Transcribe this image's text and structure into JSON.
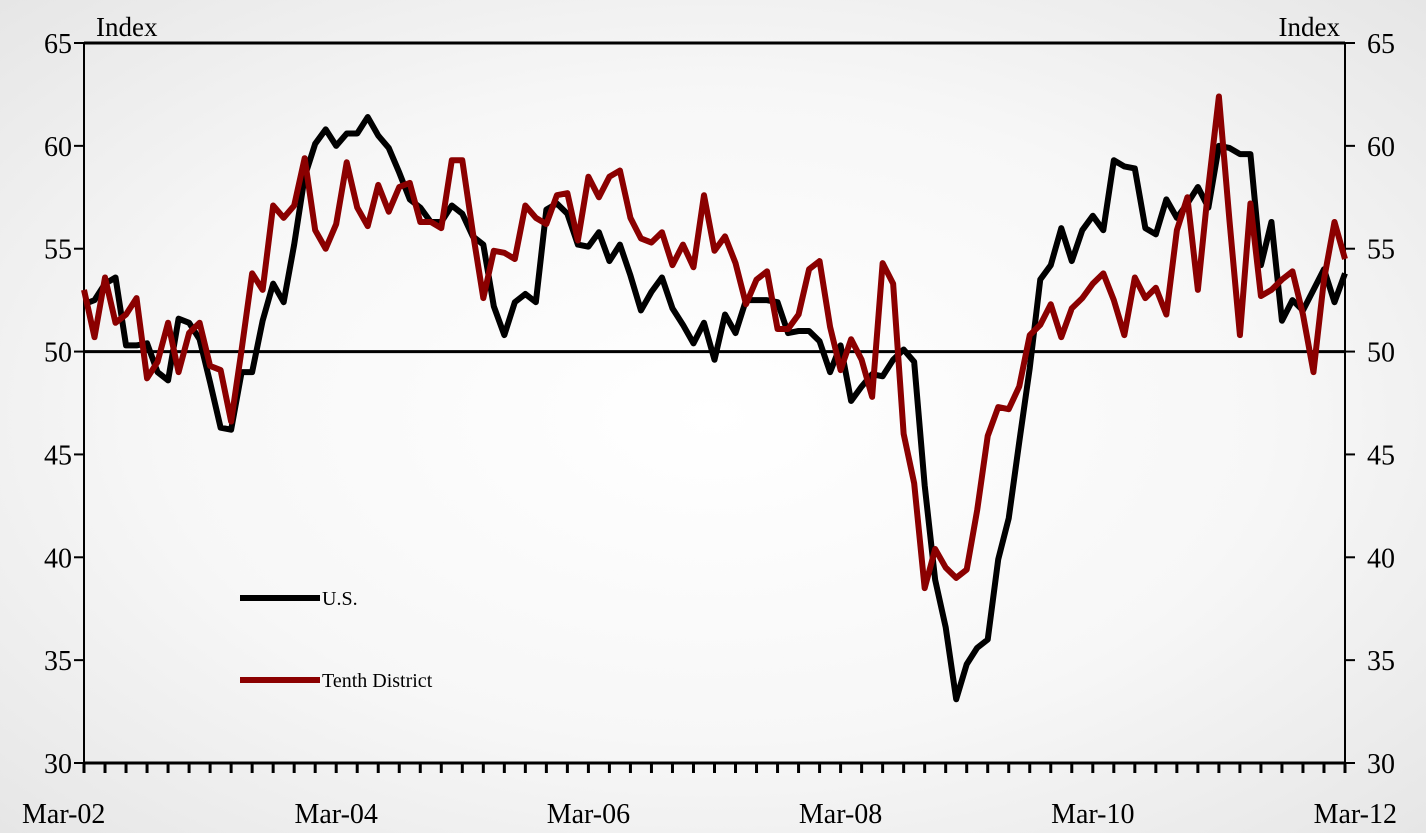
{
  "chart_data": {
    "type": "line",
    "y_label": "Index",
    "y2_label": "Index",
    "categories": [
      "Mar-02",
      null,
      null,
      null,
      null,
      null,
      null,
      null,
      null,
      null,
      null,
      null,
      null,
      null,
      null,
      null,
      null,
      null,
      null,
      null,
      null,
      null,
      null,
      null,
      "Mar-04",
      null,
      null,
      null,
      null,
      null,
      null,
      null,
      null,
      null,
      null,
      null,
      null,
      null,
      null,
      null,
      null,
      null,
      null,
      null,
      null,
      null,
      null,
      null,
      "Mar-06",
      null,
      null,
      null,
      null,
      null,
      null,
      null,
      null,
      null,
      null,
      null,
      null,
      null,
      null,
      null,
      null,
      null,
      null,
      null,
      null,
      null,
      null,
      null,
      "Mar-08",
      null,
      null,
      null,
      null,
      null,
      null,
      null,
      null,
      null,
      null,
      null,
      null,
      null,
      null,
      null,
      null,
      null,
      null,
      null,
      null,
      null,
      null,
      null,
      "Mar-10",
      null,
      null,
      null,
      null,
      null,
      null,
      null,
      null,
      null,
      null,
      null,
      null,
      null,
      null,
      null,
      null,
      null,
      null,
      null,
      null,
      null,
      null,
      null,
      "Mar-12"
    ],
    "series": [
      {
        "name": "U.S.",
        "color": "#000000",
        "values": [
          52.3,
          52.5,
          53.3,
          53.6,
          50.3,
          50.3,
          50.4,
          49.0,
          48.6,
          51.6,
          51.4,
          50.6,
          48.5,
          46.3,
          46.2,
          49.0,
          49.0,
          51.5,
          53.3,
          52.4,
          55.2,
          58.5,
          60.1,
          60.8,
          60.0,
          60.6,
          60.6,
          61.4,
          60.5,
          59.9,
          58.7,
          57.4,
          57.0,
          56.3,
          56.3,
          57.1,
          56.7,
          55.6,
          55.2,
          52.2,
          50.8,
          52.4,
          52.8,
          52.4,
          56.9,
          57.2,
          56.7,
          55.2,
          55.1,
          55.8,
          54.4,
          55.2,
          53.7,
          52.0,
          52.9,
          53.6,
          52.1,
          51.3,
          50.4,
          51.4,
          49.6,
          51.8,
          50.9,
          52.5,
          52.5,
          52.5,
          52.4,
          50.9,
          51.0,
          51.0,
          50.5,
          49.0,
          50.3,
          47.6,
          48.3,
          48.9,
          48.8,
          49.6,
          50.1,
          49.5,
          43.5,
          38.9,
          36.6,
          33.1,
          34.8,
          35.6,
          36.0,
          39.9,
          41.9,
          45.6,
          49.2,
          53.5,
          54.2,
          56.0,
          54.4,
          55.9,
          56.6,
          55.9,
          59.3,
          59.0,
          58.9,
          56.0,
          55.7,
          57.4,
          56.5,
          57.2,
          58.0,
          57.0,
          60.0,
          59.9,
          59.6,
          59.6,
          54.2,
          56.3,
          51.5,
          52.5,
          52.0,
          53.0,
          54.0,
          52.4,
          53.8
        ]
      },
      {
        "name": "Tenth District",
        "color": "#8b0000",
        "values": [
          53.0,
          50.7,
          53.6,
          51.4,
          51.8,
          52.6,
          48.7,
          49.5,
          51.4,
          49.0,
          50.9,
          51.4,
          49.3,
          49.1,
          46.6,
          50.1,
          53.8,
          53.0,
          57.1,
          56.5,
          57.1,
          59.4,
          55.9,
          55.0,
          56.2,
          59.2,
          57.0,
          56.1,
          58.1,
          56.8,
          58.0,
          58.2,
          56.3,
          56.3,
          56.0,
          59.3,
          59.3,
          55.8,
          52.6,
          54.9,
          54.8,
          54.5,
          57.1,
          56.5,
          56.2,
          57.6,
          57.7,
          55.4,
          58.5,
          57.5,
          58.5,
          58.8,
          56.5,
          55.5,
          55.3,
          55.8,
          54.2,
          55.2,
          54.1,
          57.6,
          54.9,
          55.6,
          54.3,
          52.3,
          53.5,
          53.9,
          51.1,
          51.1,
          51.8,
          54.0,
          54.4,
          51.2,
          49.1,
          50.6,
          49.6,
          47.8,
          54.3,
          53.3,
          46.0,
          43.6,
          38.5,
          40.4,
          39.5,
          39.0,
          39.4,
          42.3,
          45.9,
          47.3,
          47.2,
          48.3,
          50.8,
          51.3,
          52.3,
          50.7,
          52.1,
          52.6,
          53.3,
          53.8,
          52.5,
          50.8,
          53.6,
          52.6,
          53.1,
          51.8,
          55.9,
          57.5,
          53.0,
          58.0,
          62.4,
          56.4,
          50.8,
          57.2,
          52.7,
          53.0,
          53.5,
          53.9,
          51.8,
          49.0,
          53.5,
          56.3,
          54.5
        ]
      }
    ],
    "ylim": [
      30,
      65
    ],
    "yticks": [
      30,
      35,
      40,
      45,
      50,
      55,
      60,
      65
    ],
    "y2lim": [
      30,
      65
    ],
    "y2ticks": [
      30,
      35,
      40,
      45,
      50,
      55,
      60,
      65
    ],
    "reference_line": 50,
    "legend": "lower left"
  }
}
